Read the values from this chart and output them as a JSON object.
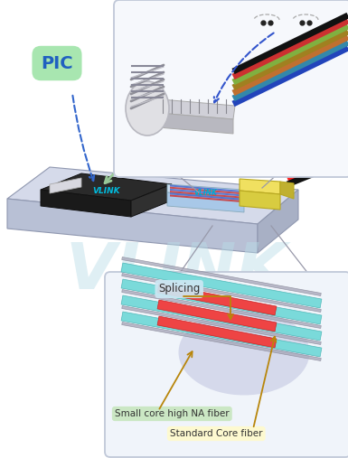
{
  "bg_color": "#ffffff",
  "watermark_text": "VLINK",
  "watermark_color": "#b8dde8",
  "pic_label": "PIC",
  "pic_label_bg": "#a8e6b0",
  "pic_label_color": "#2060c0",
  "splicing_label": "Splicing",
  "splicing_label_bg": "#cce8f4",
  "small_core_label": "Small core high NA fiber",
  "small_core_label_bg": "#c8e6c0",
  "standard_core_label": "Standard Core fiber",
  "standard_core_label_bg": "#fffacd",
  "annotation_color": "#b8860b",
  "slab_top_color": "#d5daea",
  "slab_front_color": "#b8c0d5",
  "slab_side_color": "#a8b0c5",
  "chip_top_color": "#2a2a2a",
  "chip_front_color": "#1a1a1a",
  "chip_side_color": "#303030",
  "coupler_top_color": "#c8ddf0",
  "coupler_front_color": "#a8c8e8",
  "yellow_top": "#f0e060",
  "yellow_front": "#d8cc40",
  "yellow_side": "#c0b030",
  "fiber_colors_main": [
    "#d0d0d8",
    "#d0d0d8",
    "#ff2222",
    "#111111"
  ],
  "fiber_top_colors": [
    "#2244bb",
    "#3388aa",
    "#c07030",
    "#a08020",
    "#80b040",
    "#cc3030",
    "#111111"
  ],
  "cyan_fiber": "#7adada",
  "red_fiber": "#ee4444",
  "gray_fiber": "#aaaabc"
}
